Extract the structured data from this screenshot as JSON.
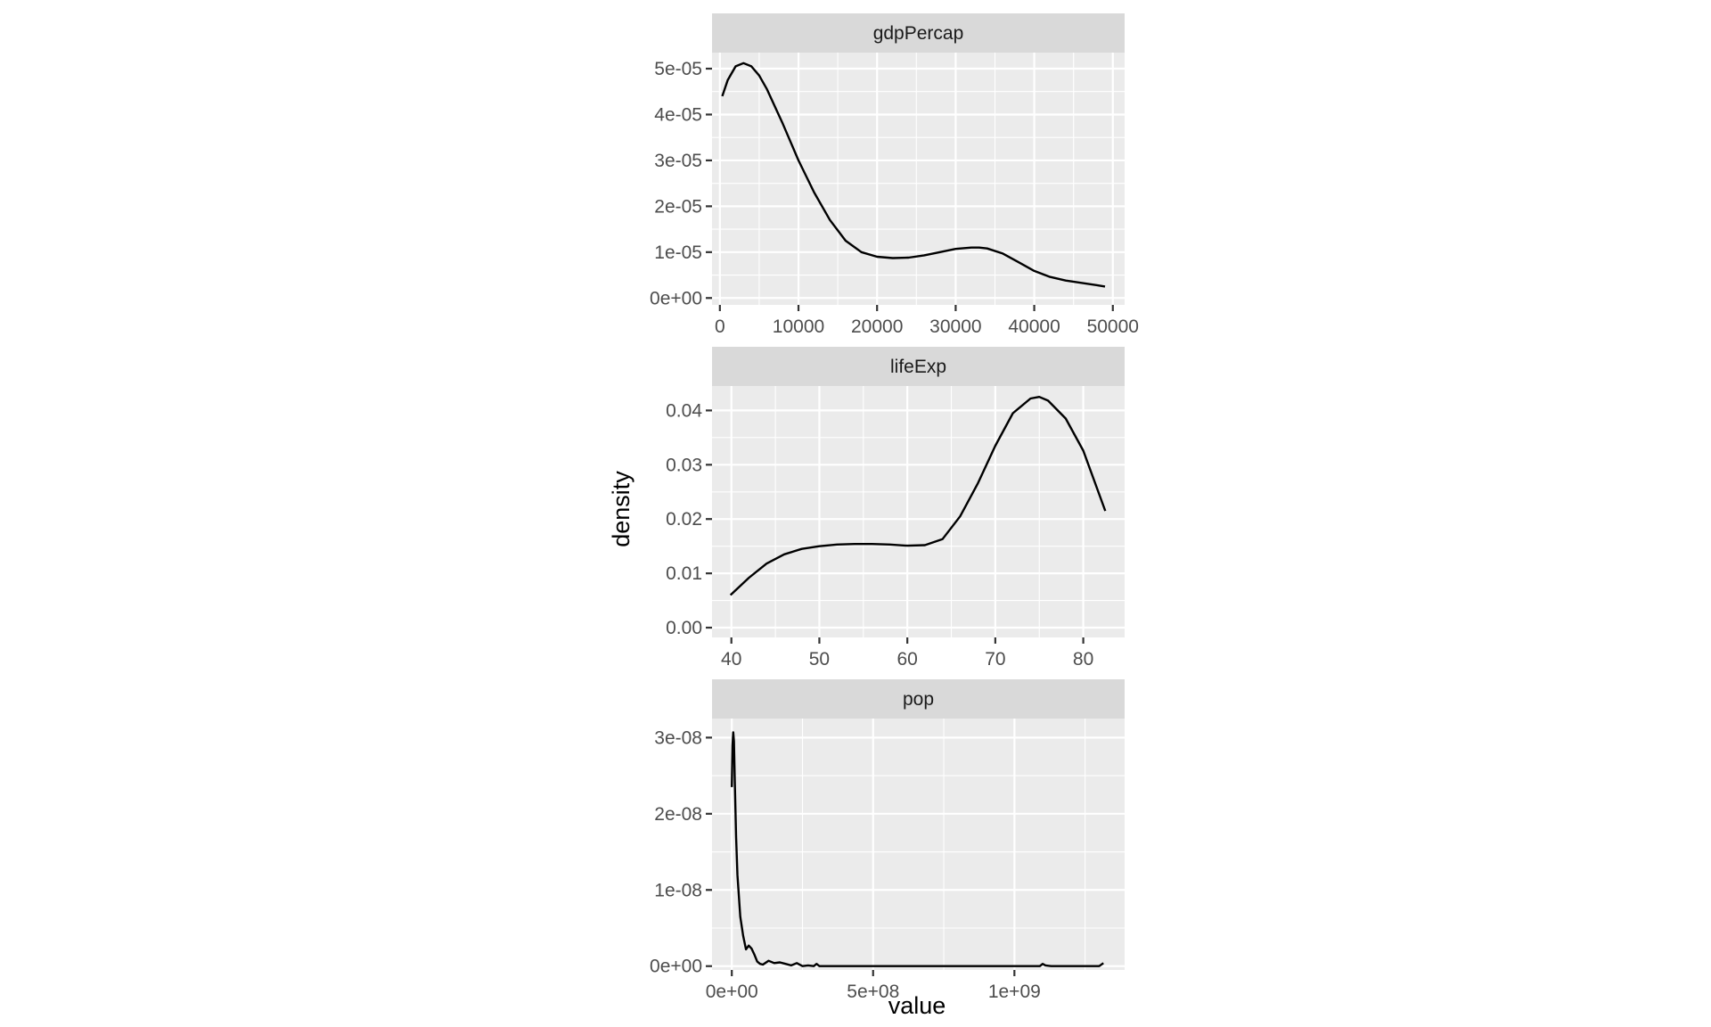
{
  "chart_data": {
    "type": "line",
    "chart_subtype": "faceted density plot",
    "xlabel": "value",
    "ylabel": "density",
    "grid": true,
    "legend": "none",
    "facets": [
      {
        "name": "gdpPercap",
        "xlim": [
          -1000,
          51500
        ],
        "ylim": [
          -1.5e-06,
          5.35e-05
        ],
        "x_ticks": [
          0,
          10000,
          20000,
          30000,
          40000,
          50000
        ],
        "x_tick_labels": [
          "0",
          "10000",
          "20000",
          "30000",
          "40000",
          "50000"
        ],
        "y_ticks": [
          0,
          1e-05,
          2e-05,
          3e-05,
          4e-05,
          5e-05
        ],
        "y_tick_labels": [
          "0e+00",
          "1e-05",
          "2e-05",
          "3e-05",
          "4e-05",
          "5e-05"
        ],
        "x": [
          300,
          1000,
          2000,
          3000,
          4000,
          5000,
          6000,
          8000,
          10000,
          12000,
          14000,
          16000,
          18000,
          20000,
          22000,
          24000,
          26000,
          28000,
          30000,
          32000,
          33000,
          34000,
          36000,
          38000,
          40000,
          42000,
          44000,
          46000,
          48000,
          49000
        ],
        "y": [
          4.4e-05,
          4.75e-05,
          5.05e-05,
          5.12e-05,
          5.05e-05,
          4.85e-05,
          4.55e-05,
          3.8e-05,
          3e-05,
          2.3e-05,
          1.7e-05,
          1.25e-05,
          1e-05,
          9e-06,
          8.7e-06,
          8.8e-06,
          9.3e-06,
          1e-05,
          1.07e-05,
          1.1e-05,
          1.1e-05,
          1.08e-05,
          9.7e-06,
          7.8e-06,
          5.9e-06,
          4.6e-06,
          3.8e-06,
          3.3e-06,
          2.8e-06,
          2.5e-06
        ]
      },
      {
        "name": "lifeExp",
        "xlim": [
          37.8,
          84.7
        ],
        "ylim": [
          -0.0018,
          0.0445
        ],
        "x_ticks": [
          40,
          50,
          60,
          70,
          80
        ],
        "x_tick_labels": [
          "40",
          "50",
          "60",
          "70",
          "80"
        ],
        "y_ticks": [
          0,
          0.01,
          0.02,
          0.03,
          0.04
        ],
        "y_tick_labels": [
          "0.00",
          "0.01",
          "0.02",
          "0.03",
          "0.04"
        ],
        "x": [
          39.9,
          42,
          44,
          46,
          48,
          50,
          52,
          54,
          56,
          58,
          60,
          62,
          64,
          66,
          68,
          70,
          72,
          74,
          75,
          76,
          78,
          80,
          82.5
        ],
        "y": [
          0.006,
          0.0092,
          0.0118,
          0.0135,
          0.0145,
          0.015,
          0.0153,
          0.0154,
          0.0154,
          0.0153,
          0.0151,
          0.0152,
          0.0163,
          0.0205,
          0.0265,
          0.0335,
          0.0395,
          0.0422,
          0.0425,
          0.0418,
          0.0385,
          0.0326,
          0.0215
        ]
      },
      {
        "name": "pop",
        "xlim": [
          -70000000,
          1390000000
        ],
        "ylim": [
          -5e-10,
          3.25e-08
        ],
        "x_ticks": [
          0,
          500000000,
          1000000000
        ],
        "x_tick_labels": [
          "0e+00",
          "5e+08",
          "1e+09"
        ],
        "y_ticks": [
          0,
          1e-08,
          2e-08,
          3e-08
        ],
        "y_tick_labels": [
          "0e+00",
          "1e-08",
          "2e-08",
          "3e-08"
        ],
        "x": [
          60000,
          2500000,
          5000000,
          7500000,
          10000000,
          15000000,
          20000000,
          30000000,
          40000000,
          50000000,
          60000000,
          70000000,
          80000000,
          90000000,
          100000000,
          110000000,
          130000000,
          150000000,
          170000000,
          190000000,
          210000000,
          230000000,
          250000000,
          270000000,
          290000000,
          300000000,
          310000000,
          330000000,
          500000000,
          800000000,
          1090000000,
          1100000000,
          1110000000,
          1130000000,
          1300000000,
          1315000000
        ],
        "y": [
          2.35e-08,
          2.9e-08,
          3.07e-08,
          2.95e-08,
          2.5e-08,
          1.7e-08,
          1.2e-08,
          6.5e-09,
          4e-09,
          2.2e-09,
          2.7e-09,
          2.3e-09,
          1.5e-09,
          6e-10,
          3e-10,
          2e-10,
          7e-10,
          4e-10,
          5e-10,
          3e-10,
          1e-10,
          4e-10,
          0,
          1e-10,
          0,
          3e-10,
          0,
          0,
          0,
          0,
          0,
          3e-10,
          1e-10,
          0,
          0,
          4e-10
        ]
      }
    ]
  }
}
